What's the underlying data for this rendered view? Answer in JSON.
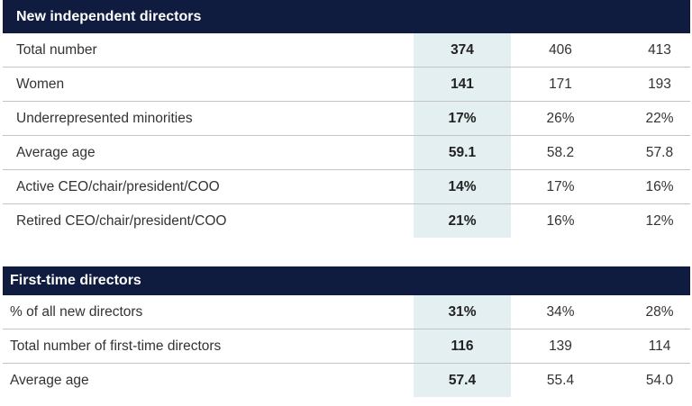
{
  "sections": [
    {
      "title": "New independent directors",
      "rows": [
        [
          "Total number",
          "374",
          "406",
          "413"
        ],
        [
          "Women",
          "141",
          "171",
          "193"
        ],
        [
          "Underrepresented minorities",
          "17%",
          "26%",
          "22%"
        ],
        [
          "Average age",
          "59.1",
          "58.2",
          "57.8"
        ],
        [
          "Active CEO/chair/president/COO",
          "14%",
          "17%",
          "16%"
        ],
        [
          "Retired CEO/chair/president/COO",
          "21%",
          "16%",
          "12%"
        ]
      ]
    },
    {
      "title": "First-time directors",
      "rows": [
        [
          "% of all new directors",
          "31%",
          "34%",
          "28%"
        ],
        [
          "Total number of first-time directors",
          "116",
          "139",
          "114"
        ],
        [
          "Average age",
          "57.4",
          "55.4",
          "54.0"
        ]
      ]
    }
  ]
}
